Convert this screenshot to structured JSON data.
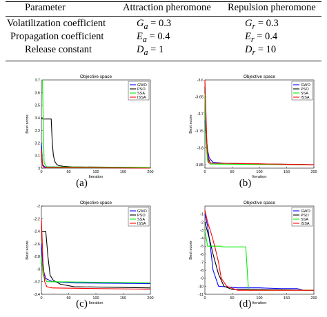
{
  "table": {
    "headers": [
      "Parameter",
      "Attraction pheromone",
      "Repulsion pheromone"
    ],
    "rows": [
      {
        "param": "Volatilization coefficient",
        "a_sym": "G",
        "a_sub": "a",
        "a_val": " = 0.3",
        "r_sym": "G",
        "r_sub": "r",
        "r_val": " = 0.3"
      },
      {
        "param": "Propagation coefficient",
        "a_sym": "E",
        "a_sub": "a",
        "a_val": " = 0.4",
        "r_sym": "E",
        "r_sub": "r",
        "r_val": " = 0.4"
      },
      {
        "param": "Release constant",
        "a_sym": "D",
        "a_sub": "a",
        "a_val": " = 1",
        "r_sym": "D",
        "r_sub": "r",
        "r_val": " = 10"
      }
    ]
  },
  "colors": {
    "GWO": "#0000ff",
    "PSO": "#000000",
    "SSA": "#00ee00",
    "ISSA": "#ff0000"
  },
  "chart_data": [
    {
      "type": "line",
      "caption": "(a)",
      "title": "Objective space",
      "xlabel": "Iteration",
      "ylabel": "Best score",
      "xlim": [
        0,
        200
      ],
      "ylim": [
        3.0,
        3.7
      ],
      "xticks": [
        0,
        50,
        100,
        150,
        200
      ],
      "yticks": [
        3,
        3.1,
        3.2,
        3.3,
        3.4,
        3.5,
        3.6,
        3.7
      ],
      "yticklabels": [
        "3",
        "3.1",
        "3.2",
        "3.3",
        "3.4",
        "3.5",
        "3.6",
        "3.7"
      ],
      "legend": "top-right",
      "series": [
        {
          "name": "GWO",
          "points": [
            [
              0,
              3.2
            ],
            [
              2,
              3.03
            ],
            [
              6,
              3.01
            ],
            [
              200,
              3.0
            ]
          ]
        },
        {
          "name": "PSO",
          "points": [
            [
              0,
              3.4
            ],
            [
              2,
              3.39
            ],
            [
              18,
              3.39
            ],
            [
              20,
              3.2
            ],
            [
              22,
              3.1
            ],
            [
              25,
              3.05
            ],
            [
              28,
              3.03
            ],
            [
              32,
              3.02
            ],
            [
              40,
              3.015
            ],
            [
              55,
              3.01
            ],
            [
              200,
              3.005
            ]
          ]
        },
        {
          "name": "SSA",
          "points": [
            [
              0,
              3.7
            ],
            [
              2,
              3.7
            ],
            [
              3,
              3.45
            ],
            [
              5,
              3.04
            ],
            [
              10,
              3.01
            ],
            [
              200,
              3.005
            ]
          ]
        },
        {
          "name": "ISSA",
          "points": [
            [
              0,
              3.15
            ],
            [
              2,
              3.02
            ],
            [
              5,
              3.005
            ],
            [
              200,
              3.0
            ]
          ]
        }
      ]
    },
    {
      "type": "line",
      "caption": "(b)",
      "title": "Objective space",
      "xlabel": "Iteration",
      "ylabel": "Best score",
      "xlim": [
        0,
        200
      ],
      "ylim": [
        -3.86,
        -3.6
      ],
      "xticks": [
        0,
        50,
        100,
        150,
        200
      ],
      "yticks": [
        -3.6,
        -3.65,
        -3.7,
        -3.75,
        -3.8,
        -3.85
      ],
      "yticklabels": [
        "-3.6",
        "-3.65",
        "-3.7",
        "-3.75",
        "-3.8",
        "-3.85"
      ],
      "legend": "top-right",
      "series": [
        {
          "name": "GWO",
          "points": [
            [
              0,
              -3.72
            ],
            [
              4,
              -3.8
            ],
            [
              8,
              -3.83
            ],
            [
              15,
              -3.843
            ],
            [
              40,
              -3.846
            ],
            [
              90,
              -3.848
            ],
            [
              200,
              -3.85
            ]
          ]
        },
        {
          "name": "PSO",
          "points": [
            [
              0,
              -3.62
            ],
            [
              2,
              -3.75
            ],
            [
              6,
              -3.83
            ],
            [
              10,
              -3.845
            ],
            [
              200,
              -3.85
            ]
          ]
        },
        {
          "name": "SSA",
          "points": [
            [
              0,
              -3.64
            ],
            [
              2,
              -3.78
            ],
            [
              5,
              -3.84
            ],
            [
              10,
              -3.848
            ],
            [
              200,
              -3.85
            ]
          ]
        },
        {
          "name": "ISSA",
          "points": [
            [
              0,
              -3.6
            ],
            [
              2,
              -3.7
            ],
            [
              4,
              -3.8
            ],
            [
              7,
              -3.845
            ],
            [
              200,
              -3.85
            ]
          ]
        }
      ]
    },
    {
      "type": "line",
      "caption": "(c)",
      "title": "Objective space",
      "xlabel": "Iteration",
      "ylabel": "Best score",
      "xlim": [
        0,
        200
      ],
      "ylim": [
        -3.4,
        -2.0
      ],
      "xticks": [
        0,
        50,
        100,
        150,
        200
      ],
      "yticks": [
        -2,
        -2.2,
        -2.4,
        -2.6,
        -2.8,
        -3,
        -3.2,
        -3.4
      ],
      "yticklabels": [
        "-2",
        "-2.2",
        "-2.4",
        "-2.6",
        "-2.8",
        "-3",
        "-3.2",
        "-3.4"
      ],
      "legend": "top-right",
      "series": [
        {
          "name": "GWO",
          "points": [
            [
              0,
              -2.6
            ],
            [
              3,
              -3.0
            ],
            [
              8,
              -3.15
            ],
            [
              20,
              -3.2
            ],
            [
              60,
              -3.22
            ],
            [
              200,
              -3.23
            ]
          ]
        },
        {
          "name": "PSO",
          "points": [
            [
              0,
              -2.4
            ],
            [
              8,
              -2.4
            ],
            [
              12,
              -2.8
            ],
            [
              16,
              -3.1
            ],
            [
              22,
              -3.18
            ],
            [
              35,
              -3.24
            ],
            [
              60,
              -3.28
            ],
            [
              200,
              -3.3
            ]
          ]
        },
        {
          "name": "SSA",
          "points": [
            [
              0,
              -2.8
            ],
            [
              3,
              -3.1
            ],
            [
              10,
              -3.2
            ],
            [
              200,
              -3.22
            ]
          ]
        },
        {
          "name": "ISSA",
          "points": [
            [
              0,
              -2.2
            ],
            [
              3,
              -2.9
            ],
            [
              6,
              -3.2
            ],
            [
              10,
              -3.28
            ],
            [
              20,
              -3.3
            ],
            [
              200,
              -3.32
            ]
          ]
        }
      ]
    },
    {
      "type": "line",
      "caption": "(d)",
      "title": "Objective space",
      "xlabel": "Iteration",
      "ylabel": "Best score",
      "xlim": [
        0,
        200
      ],
      "ylim": [
        -11,
        0
      ],
      "xticks": [
        0,
        50,
        100,
        150,
        200
      ],
      "yticks": [
        -1,
        -2,
        -3,
        -4,
        -5,
        -6,
        -7,
        -8,
        -9,
        -10,
        -11
      ],
      "yticklabels": [
        "-1",
        "-2",
        "-3",
        "-4",
        "-5",
        "-6",
        "-7",
        "-8",
        "-9",
        "-10",
        "-11"
      ],
      "legend": "top-right",
      "series": [
        {
          "name": "GWO",
          "points": [
            [
              0,
              -1
            ],
            [
              5,
              -2.5
            ],
            [
              10,
              -5
            ],
            [
              15,
              -8
            ],
            [
              25,
              -10
            ],
            [
              60,
              -10.2
            ],
            [
              100,
              -10.2
            ],
            [
              140,
              -10.3
            ],
            [
              170,
              -10.3
            ],
            [
              180,
              -10.5
            ],
            [
              200,
              -10.5
            ]
          ]
        },
        {
          "name": "PSO",
          "points": [
            [
              0,
              -2
            ],
            [
              8,
              -4
            ],
            [
              15,
              -6
            ],
            [
              25,
              -8.5
            ],
            [
              35,
              -10
            ],
            [
              50,
              -10.4
            ],
            [
              200,
              -10.5
            ]
          ]
        },
        {
          "name": "SSA",
          "points": [
            [
              0,
              -3
            ],
            [
              5,
              -5
            ],
            [
              30,
              -5
            ],
            [
              32,
              -5.1
            ],
            [
              75,
              -5.1
            ],
            [
              80,
              -10.5
            ],
            [
              200,
              -10.5
            ]
          ]
        },
        {
          "name": "ISSA",
          "points": [
            [
              0,
              -0.5
            ],
            [
              5,
              -2
            ],
            [
              12,
              -3.5
            ],
            [
              18,
              -5
            ],
            [
              25,
              -7
            ],
            [
              30,
              -9
            ],
            [
              40,
              -10
            ],
            [
              60,
              -10.5
            ],
            [
              200,
              -10.5
            ]
          ]
        }
      ]
    }
  ]
}
